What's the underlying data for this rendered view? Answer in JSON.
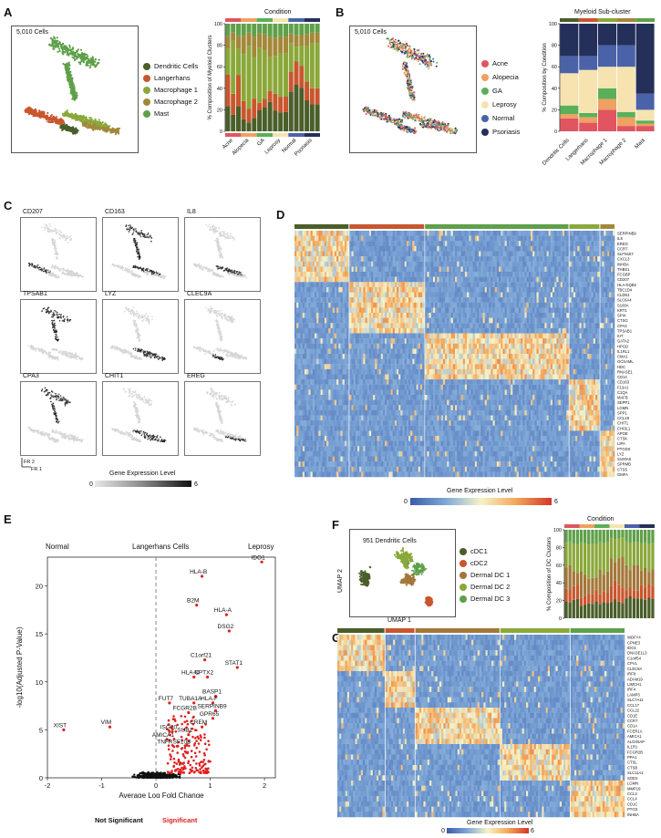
{
  "panels": {
    "A": {
      "letter": "A",
      "cell_count": "5,010 Cells",
      "legend": [
        "Dendritic Cells",
        "Langerhans",
        "Macrophage 1",
        "Macrophage 2",
        "Mast"
      ],
      "legend_colors": [
        "#4a5e2a",
        "#c8562e",
        "#8aa83a",
        "#a3883a",
        "#5fa04a"
      ],
      "bar_title": "Condition",
      "ylabel": "% Composition of Myeloid Clusters",
      "conditions": [
        "Acne",
        "Alopecia",
        "GA",
        "Leprosy",
        "Normal",
        "Psoriasis"
      ],
      "condition_colors": [
        "#e05560",
        "#f0a060",
        "#5ab058",
        "#f6e3b0",
        "#4a62a8",
        "#24305a"
      ],
      "yticks": [
        "0",
        "20",
        "40",
        "60",
        "80",
        "100"
      ]
    },
    "B": {
      "letter": "B",
      "cell_count": "5,010 Cells",
      "legend": [
        "Acne",
        "Alopecia",
        "GA",
        "Leprosy",
        "Normal",
        "Psoriasis"
      ],
      "bar_title": "Myeloid Sub-cluster",
      "ylabel": "% Composition by Condition",
      "xcats": [
        "Dendritic Cells",
        "Langerhans",
        "Macrophage 1",
        "Macrophage 2",
        "Mast"
      ],
      "yticks": [
        "0",
        "20",
        "40",
        "60",
        "80",
        "100"
      ]
    },
    "C": {
      "letter": "C",
      "genes": [
        "CD207",
        "CD163",
        "IL8",
        "TPSAB1",
        "LYZ",
        "CLEC9A",
        "CPA3",
        "CHIT1",
        "EREG"
      ],
      "axis_fr2": "FR 2",
      "axis_fr1": "FR 1",
      "scale_title": "Gene Expression Level",
      "scale_min": "0",
      "scale_max": "6"
    },
    "D": {
      "letter": "D",
      "genes": [
        "SERPINB9",
        "IL8",
        "EREG",
        "CCR7",
        "SLFN157",
        "CXCL3",
        "INHBA",
        "THBS1",
        "FCGBP",
        "CD207",
        "HLA-DQB2",
        "TBC1D4",
        "CLDN1",
        "SLC6A4",
        "S100A",
        "KRT1",
        "SPI4",
        "CTSG",
        "CPA3",
        "TPSAB1",
        "KIT",
        "GATA2",
        "HPGD",
        "IL1RL1",
        "CMA1",
        "GCSAML",
        "HDC",
        "RNASE1",
        "CD14",
        "CD163",
        "F13A1",
        "C1QA",
        "MAFB",
        "SEPP1",
        "LGMN",
        "SPP1",
        "CCL18",
        "CHIT1",
        "CHI3L1",
        "APOE",
        "CTSK",
        "LIPA",
        "PTGDS",
        "LYZ",
        "S100A8",
        "SPRMB",
        "CTSS",
        "GMFA"
      ],
      "scale_title": "Gene Expression Level",
      "scale_min": "0",
      "scale_max": "6"
    },
    "E": {
      "letter": "E",
      "left_title": "Normal",
      "center_title": "Langerhans Cells",
      "right_title": "Leprosy",
      "ylabel": "-log10(Adjusted P-Value)",
      "xlabel": "Average Log Fold Change",
      "legend_ns": "Not Significant",
      "legend_sig": "Significant",
      "xticks": [
        "-2",
        "-1",
        "0",
        "1",
        "2"
      ],
      "yticks": [
        "0",
        "5",
        "10",
        "15",
        "20"
      ]
    },
    "F": {
      "letter": "F",
      "cell_count": "951 Dendritic Cells",
      "umap1": "UMAP 1",
      "umap2": "UMAP 2",
      "legend": [
        "cDC1",
        "cDC2",
        "Dermal DC 1",
        "Dermal DC 2",
        "Dermal DC 3"
      ],
      "legend_colors": [
        "#4a5e2a",
        "#c8562e",
        "#a3773a",
        "#8aa83a",
        "#5fa04a"
      ],
      "bar_title": "Condition",
      "ylabel": "% Composition of DC Clusters",
      "yticks": [
        "0",
        "20",
        "40",
        "60",
        "80",
        "100"
      ]
    },
    "G": {
      "letter": "G",
      "genes": [
        "WDFY4",
        "CPNE3",
        "IDO1",
        "DNASE1L3",
        "C1orf54",
        "CPVL",
        "CLEC9A",
        "IRF8",
        "ADAM19",
        "LIMCH1",
        "IRF4",
        "LAMP3",
        "SLC7A11",
        "CCL17",
        "CCL22",
        "CD1E",
        "CCR7",
        "CD1A",
        "FCER1A",
        "AMICA1",
        "ALOX5AP",
        "IL1R1",
        "FCGR2B",
        "PPA1",
        "CTSL",
        "CTSB",
        "SLC11A1",
        "SOD2",
        "LGMN",
        "MMP19",
        "CCL3",
        "CCL4",
        "CD1C",
        "PTGS",
        "INHBA"
      ],
      "scale_title": "Gene Expression Level",
      "scale_min": "0",
      "scale_max": "6"
    }
  },
  "chart_data": [
    {
      "type": "bar",
      "title": "Condition",
      "ylabel": "% Composition of Myeloid Clusters",
      "categories": [
        "Acne",
        "Alopecia",
        "GA",
        "Leprosy",
        "Normal",
        "Psoriasis"
      ],
      "ylim": [
        0,
        100
      ],
      "series": [
        {
          "name": "Dendritic Cells",
          "values": [
            20,
            10,
            22,
            15,
            40,
            30
          ]
        },
        {
          "name": "Langerhans",
          "values": [
            25,
            15,
            8,
            12,
            20,
            18
          ]
        },
        {
          "name": "Macrophage 1",
          "values": [
            35,
            50,
            45,
            50,
            20,
            30
          ]
        },
        {
          "name": "Macrophage 2",
          "values": [
            10,
            15,
            15,
            13,
            10,
            12
          ]
        },
        {
          "name": "Mast",
          "values": [
            10,
            10,
            10,
            10,
            10,
            10
          ]
        }
      ]
    },
    {
      "type": "bar",
      "title": "Myeloid Sub-cluster",
      "ylabel": "% Composition by Condition",
      "categories": [
        "Dendritic Cells",
        "Langerhans",
        "Macrophage 1",
        "Macrophage 2",
        "Mast"
      ],
      "ylim": [
        0,
        100
      ],
      "series": [
        {
          "name": "Acne",
          "values": [
            12,
            8,
            20,
            5,
            5
          ]
        },
        {
          "name": "Alopecia",
          "values": [
            4,
            5,
            10,
            8,
            2
          ]
        },
        {
          "name": "GA",
          "values": [
            8,
            4,
            10,
            5,
            3
          ]
        },
        {
          "name": "Leprosy",
          "values": [
            30,
            40,
            20,
            42,
            10
          ]
        },
        {
          "name": "Normal",
          "values": [
            16,
            13,
            20,
            20,
            15
          ]
        },
        {
          "name": "Psoriasis",
          "values": [
            30,
            30,
            20,
            20,
            65
          ]
        }
      ]
    },
    {
      "type": "scatter",
      "title": "Langerhans Cells",
      "xlabel": "Average Log Fold Change",
      "ylabel": "-log10(Adjusted P-Value)",
      "xlim": [
        -2,
        2.2
      ],
      "ylim": [
        0,
        23
      ],
      "labels": [
        {
          "name": "IDO1",
          "x": 1.95,
          "y": 22.5
        },
        {
          "name": "HLA-B",
          "x": 0.85,
          "y": 21
        },
        {
          "name": "B2M",
          "x": 0.75,
          "y": 18
        },
        {
          "name": "HLA-A",
          "x": 1.3,
          "y": 17
        },
        {
          "name": "DSG2",
          "x": 1.35,
          "y": 15.3
        },
        {
          "name": "C1orf21",
          "x": 0.9,
          "y": 12.3
        },
        {
          "name": "STAT1",
          "x": 1.5,
          "y": 11.5
        },
        {
          "name": "HLA-C",
          "x": 0.7,
          "y": 10.5
        },
        {
          "name": "NPTX2",
          "x": 0.95,
          "y": 10.5
        },
        {
          "name": "BASP1",
          "x": 1.1,
          "y": 8.5
        },
        {
          "name": "HLA-F",
          "x": 1.05,
          "y": 7.8
        },
        {
          "name": "TUBA1A",
          "x": 0.7,
          "y": 7.8
        },
        {
          "name": "FUT7",
          "x": 0.25,
          "y": 7.8
        },
        {
          "name": "SERPINB9",
          "x": 1.1,
          "y": 7
        },
        {
          "name": "FCGR2B",
          "x": 0.6,
          "y": 6.8
        },
        {
          "name": "GPR65",
          "x": 1.05,
          "y": 6.2
        },
        {
          "name": "CREM",
          "x": 0.85,
          "y": 5.3
        },
        {
          "name": "ISG20",
          "x": 0.3,
          "y": 4.8
        },
        {
          "name": "SUB1",
          "x": 0.6,
          "y": 4.5
        },
        {
          "name": "AMICA1",
          "x": 0.2,
          "y": 4
        },
        {
          "name": "TNFRSF10B",
          "x": 0.4,
          "y": 3.3
        },
        {
          "name": "VIM",
          "x": -0.85,
          "y": 5.3
        },
        {
          "name": "XIST",
          "x": -1.7,
          "y": 5
        }
      ]
    },
    {
      "type": "bar",
      "title": "Condition",
      "ylabel": "% Composition of DC Clusters",
      "categories": [
        "Acne",
        "Alopecia",
        "GA",
        "Leprosy",
        "Normal",
        "Psoriasis"
      ],
      "ylim": [
        0,
        100
      ],
      "series": [
        {
          "name": "cDC1",
          "values": [
            20,
            15,
            18,
            20,
            25,
            22
          ]
        },
        {
          "name": "cDC2",
          "values": [
            15,
            10,
            12,
            20,
            10,
            15
          ]
        },
        {
          "name": "Dermal DC 1",
          "values": [
            20,
            25,
            20,
            25,
            20,
            18
          ]
        },
        {
          "name": "Dermal DC 2",
          "values": [
            30,
            35,
            35,
            25,
            30,
            30
          ]
        },
        {
          "name": "Dermal DC 3",
          "values": [
            15,
            15,
            15,
            10,
            15,
            15
          ]
        }
      ]
    }
  ]
}
